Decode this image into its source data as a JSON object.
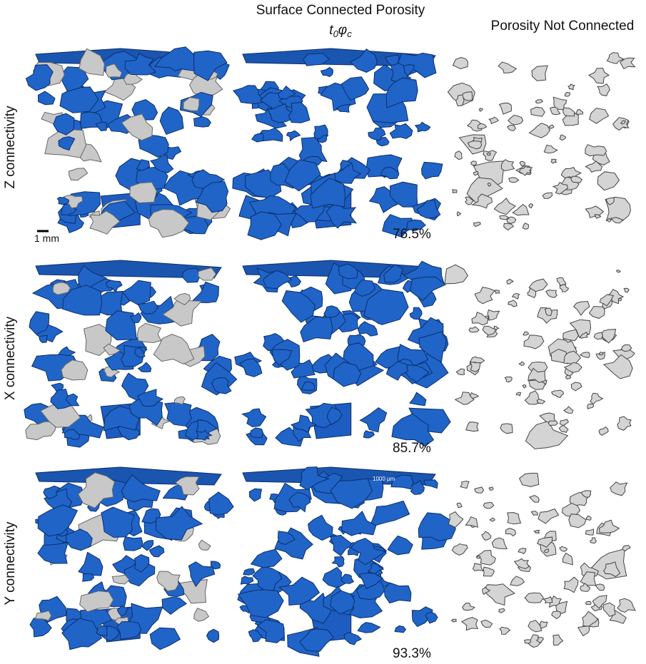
{
  "header": {
    "title": "Surface Connected Porosity",
    "subtitle_parts": [
      "t",
      "0",
      "φ",
      "c"
    ],
    "right_title": "Porosity Not Connected"
  },
  "rows": [
    {
      "label": "Z connectivity",
      "percent": "76.5%"
    },
    {
      "label": "X connectivity",
      "percent": "85.7%"
    },
    {
      "label": "Y connectivity",
      "percent": "93.3%"
    }
  ],
  "scale_bar": "1 mm",
  "inset_scale": "1000 µm"
}
